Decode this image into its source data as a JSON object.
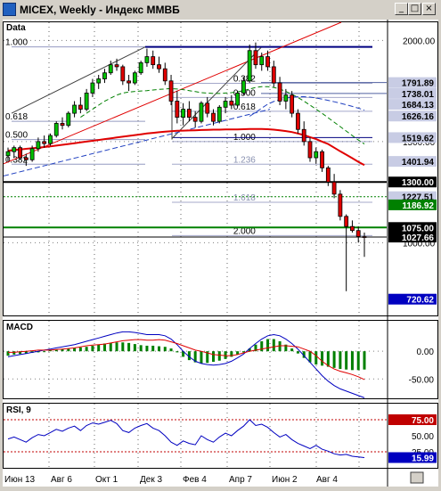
{
  "window": {
    "title": "MICEX, Weekly - Индекс ММВБ",
    "btn_min": "_",
    "btn_max": "□",
    "btn_close": "×"
  },
  "chart_data": {
    "type": "candlestick",
    "instrument": "MICEX",
    "timeframe": "Weekly",
    "panes": [
      {
        "id": "price",
        "label": "Data",
        "ylim": [
          640,
          2090
        ],
        "axis_labels": [
          {
            "value": 2000.0,
            "text": "2000.00"
          },
          {
            "value": 1500.0,
            "text": "1500.00"
          },
          {
            "value": 1000.0,
            "text": "1000.00"
          }
        ],
        "price_boxes": [
          {
            "value": 1791.89,
            "text": "1791.89"
          },
          {
            "value": 1738.01,
            "text": "1738.01"
          },
          {
            "value": 1684.13,
            "text": "1684.13"
          },
          {
            "value": 1626.16,
            "text": "1626.16"
          },
          {
            "value": 1519.62,
            "text": "1519.62"
          },
          {
            "value": 1401.94,
            "text": "1401.94"
          },
          {
            "value": 1300.0,
            "text": "1300.00",
            "style": "black"
          },
          {
            "value": 1227.51,
            "text": "1227.51"
          },
          {
            "value": 1186.92,
            "text": "1186.92",
            "style": "green"
          },
          {
            "value": 1075.0,
            "text": "1075.00",
            "style": "black"
          },
          {
            "value": 1027.66,
            "text": "1027.66",
            "style": "black"
          },
          {
            "value": 720.62,
            "text": "720.62",
            "style": "blue"
          }
        ],
        "fib_labels": [
          {
            "text": "1.000",
            "x": 0,
            "y": 1968
          },
          {
            "text": "0.618",
            "x": 0,
            "y": 1600
          },
          {
            "text": "0.500",
            "x": 0,
            "y": 1510
          },
          {
            "text": "0.382",
            "x": 0,
            "y": 1388
          },
          {
            "text": "0.382",
            "x": 37,
            "y": 1788
          },
          {
            "text": "0.500",
            "x": 37,
            "y": 1718
          },
          {
            "text": "0.618",
            "x": 37,
            "y": 1650
          },
          {
            "text": "1.000",
            "x": 37,
            "y": 1500
          },
          {
            "text": "1.236",
            "x": 37,
            "y": 1388
          },
          {
            "text": "1.618",
            "x": 37,
            "y": 1200
          },
          {
            "text": "2.000",
            "x": 37,
            "y": 1035
          }
        ],
        "candles": [
          {
            "o": 1430,
            "h": 1470,
            "l": 1400,
            "c": 1450
          },
          {
            "o": 1450,
            "h": 1480,
            "l": 1420,
            "c": 1470
          },
          {
            "o": 1470,
            "h": 1480,
            "l": 1410,
            "c": 1420
          },
          {
            "o": 1420,
            "h": 1440,
            "l": 1380,
            "c": 1410
          },
          {
            "o": 1410,
            "h": 1480,
            "l": 1400,
            "c": 1465
          },
          {
            "o": 1465,
            "h": 1520,
            "l": 1450,
            "c": 1500
          },
          {
            "o": 1500,
            "h": 1530,
            "l": 1470,
            "c": 1490
          },
          {
            "o": 1490,
            "h": 1540,
            "l": 1480,
            "c": 1530
          },
          {
            "o": 1530,
            "h": 1600,
            "l": 1520,
            "c": 1590
          },
          {
            "o": 1590,
            "h": 1620,
            "l": 1560,
            "c": 1580
          },
          {
            "o": 1580,
            "h": 1650,
            "l": 1570,
            "c": 1640
          },
          {
            "o": 1640,
            "h": 1700,
            "l": 1620,
            "c": 1680
          },
          {
            "o": 1680,
            "h": 1720,
            "l": 1640,
            "c": 1660
          },
          {
            "o": 1660,
            "h": 1760,
            "l": 1650,
            "c": 1740
          },
          {
            "o": 1740,
            "h": 1810,
            "l": 1720,
            "c": 1790
          },
          {
            "o": 1790,
            "h": 1830,
            "l": 1760,
            "c": 1810
          },
          {
            "o": 1810,
            "h": 1860,
            "l": 1790,
            "c": 1840
          },
          {
            "o": 1840,
            "h": 1900,
            "l": 1830,
            "c": 1880
          },
          {
            "o": 1880,
            "h": 1910,
            "l": 1850,
            "c": 1870
          },
          {
            "o": 1870,
            "h": 1880,
            "l": 1780,
            "c": 1800
          },
          {
            "o": 1800,
            "h": 1830,
            "l": 1750,
            "c": 1790
          },
          {
            "o": 1790,
            "h": 1850,
            "l": 1780,
            "c": 1840
          },
          {
            "o": 1840,
            "h": 1900,
            "l": 1830,
            "c": 1890
          },
          {
            "o": 1890,
            "h": 1960,
            "l": 1870,
            "c": 1920
          },
          {
            "o": 1920,
            "h": 1950,
            "l": 1860,
            "c": 1880
          },
          {
            "o": 1880,
            "h": 1920,
            "l": 1840,
            "c": 1860
          },
          {
            "o": 1860,
            "h": 1890,
            "l": 1780,
            "c": 1800
          },
          {
            "o": 1800,
            "h": 1830,
            "l": 1680,
            "c": 1700
          },
          {
            "o": 1700,
            "h": 1750,
            "l": 1590,
            "c": 1620
          },
          {
            "o": 1620,
            "h": 1690,
            "l": 1580,
            "c": 1660
          },
          {
            "o": 1660,
            "h": 1700,
            "l": 1600,
            "c": 1620
          },
          {
            "o": 1620,
            "h": 1650,
            "l": 1570,
            "c": 1600
          },
          {
            "o": 1600,
            "h": 1700,
            "l": 1590,
            "c": 1690
          },
          {
            "o": 1690,
            "h": 1720,
            "l": 1620,
            "c": 1640
          },
          {
            "o": 1640,
            "h": 1660,
            "l": 1580,
            "c": 1600
          },
          {
            "o": 1600,
            "h": 1680,
            "l": 1590,
            "c": 1670
          },
          {
            "o": 1670,
            "h": 1720,
            "l": 1640,
            "c": 1700
          },
          {
            "o": 1700,
            "h": 1730,
            "l": 1660,
            "c": 1680
          },
          {
            "o": 1680,
            "h": 1750,
            "l": 1670,
            "c": 1740
          },
          {
            "o": 1740,
            "h": 1820,
            "l": 1730,
            "c": 1800
          },
          {
            "o": 1800,
            "h": 1980,
            "l": 1790,
            "c": 1950
          },
          {
            "o": 1950,
            "h": 1990,
            "l": 1860,
            "c": 1880
          },
          {
            "o": 1880,
            "h": 1940,
            "l": 1850,
            "c": 1920
          },
          {
            "o": 1920,
            "h": 1950,
            "l": 1850,
            "c": 1870
          },
          {
            "o": 1870,
            "h": 1900,
            "l": 1770,
            "c": 1790
          },
          {
            "o": 1790,
            "h": 1820,
            "l": 1680,
            "c": 1700
          },
          {
            "o": 1700,
            "h": 1760,
            "l": 1660,
            "c": 1730
          },
          {
            "o": 1730,
            "h": 1750,
            "l": 1620,
            "c": 1640
          },
          {
            "o": 1640,
            "h": 1660,
            "l": 1540,
            "c": 1560
          },
          {
            "o": 1560,
            "h": 1600,
            "l": 1480,
            "c": 1500
          },
          {
            "o": 1500,
            "h": 1520,
            "l": 1400,
            "c": 1420
          },
          {
            "o": 1420,
            "h": 1470,
            "l": 1390,
            "c": 1450
          },
          {
            "o": 1450,
            "h": 1460,
            "l": 1350,
            "c": 1370
          },
          {
            "o": 1370,
            "h": 1380,
            "l": 1280,
            "c": 1300
          },
          {
            "o": 1300,
            "h": 1340,
            "l": 1220,
            "c": 1240
          },
          {
            "o": 1240,
            "h": 1260,
            "l": 1110,
            "c": 1130
          },
          {
            "o": 1130,
            "h": 1140,
            "l": 760,
            "c": 1080
          },
          {
            "o": 1080,
            "h": 1110,
            "l": 1050,
            "c": 1060
          },
          {
            "o": 1060,
            "h": 1080,
            "l": 1000,
            "c": 1030
          },
          {
            "o": 1030,
            "h": 1050,
            "l": 930,
            "c": 1027.66
          }
        ],
        "ma_red": [
          1455,
          1458,
          1461,
          1464,
          1467,
          1470,
          1473,
          1476,
          1480,
          1484,
          1488,
          1492,
          1496,
          1500,
          1504,
          1508,
          1512,
          1516,
          1520,
          1524,
          1528,
          1532,
          1536,
          1540,
          1543,
          1546,
          1549,
          1551,
          1553,
          1554,
          1555,
          1556,
          1557,
          1558,
          1559,
          1559,
          1560,
          1560,
          1560,
          1561,
          1562,
          1562,
          1562,
          1561,
          1559,
          1556,
          1552,
          1547,
          1540,
          1532,
          1522,
          1512,
          1500,
          1488,
          1470,
          1452,
          1435,
          1418,
          1400,
          1384
        ],
        "ma_green": [
          null,
          null,
          null,
          null,
          null,
          null,
          null,
          null,
          null,
          null,
          null,
          null,
          1620,
          1640,
          1660,
          1680,
          1700,
          1715,
          1730,
          1740,
          1745,
          1748,
          1750,
          1752,
          1755,
          1758,
          1760,
          1762,
          1760,
          1757,
          1752,
          1747,
          1742,
          1740,
          1738,
          1738,
          1740,
          1742,
          1746,
          1752,
          1760,
          1768,
          1772,
          1772,
          1768,
          1760,
          1748,
          1734,
          1718,
          1700,
          1680,
          1660,
          1640,
          1618,
          1596,
          1574,
          1552,
          1530,
          1508,
          1488
        ],
        "ma_blue": [
          null,
          null,
          null,
          null,
          null,
          null,
          null,
          null,
          null,
          null,
          null,
          null,
          null,
          null,
          null,
          null,
          null,
          null,
          null,
          null,
          null,
          null,
          null,
          null,
          null,
          null,
          null,
          null,
          null,
          null,
          null,
          null,
          null,
          null,
          null,
          null,
          null,
          null,
          null,
          null,
          1625,
          1645,
          1665,
          1685,
          1698,
          1708,
          1715,
          1720,
          1722,
          1722,
          1720,
          1716,
          1710,
          1704,
          1697,
          1690,
          1682,
          1674,
          1665,
          1656
        ]
      },
      {
        "id": "macd",
        "label": "MACD",
        "ylim": [
          -85,
          55
        ],
        "axis_labels": [
          {
            "value": 0,
            "text": "0.00"
          },
          {
            "value": -50,
            "text": "-50.00"
          }
        ],
        "histogram": [
          -8,
          -6,
          -5,
          -4,
          -3,
          -2,
          0,
          2,
          3,
          4,
          5,
          6,
          7,
          8,
          10,
          12,
          14,
          15,
          16,
          16,
          15,
          13,
          11,
          10,
          10,
          9,
          8,
          5,
          -2,
          -10,
          -16,
          -20,
          -22,
          -21,
          -19,
          -17,
          -14,
          -10,
          -6,
          -2,
          5,
          12,
          18,
          22,
          22,
          18,
          12,
          5,
          -4,
          -12,
          -20,
          -24,
          -26,
          -28,
          -30,
          -32,
          -33,
          -34,
          -34,
          -33
        ],
        "macd_line": [
          -10,
          -8,
          -6,
          -4,
          -2,
          0,
          2,
          4,
          6,
          8,
          10,
          12,
          15,
          18,
          21,
          24,
          27,
          30,
          33,
          35,
          35,
          34,
          32,
          30,
          30,
          30,
          28,
          22,
          12,
          0,
          -10,
          -18,
          -22,
          -24,
          -25,
          -24,
          -22,
          -18,
          -12,
          -5,
          5,
          14,
          22,
          28,
          30,
          28,
          22,
          14,
          4,
          -8,
          -20,
          -32,
          -44,
          -54,
          -62,
          -68,
          -72,
          -76,
          -80,
          -84
        ],
        "signal_line": [
          -2,
          -2,
          -1,
          0,
          1,
          2,
          2,
          2,
          3,
          4,
          5,
          6,
          8,
          10,
          11,
          12,
          13,
          15,
          17,
          19,
          20,
          21,
          21,
          20,
          20,
          21,
          20,
          17,
          14,
          10,
          6,
          2,
          0,
          -3,
          -6,
          -7,
          -8,
          -8,
          -6,
          -3,
          0,
          2,
          4,
          6,
          8,
          10,
          10,
          9,
          8,
          4,
          0,
          -8,
          -18,
          -26,
          -32,
          -36,
          -39,
          -42,
          -46,
          -51
        ]
      },
      {
        "id": "rsi",
        "label": "RSI, 9",
        "ylim": [
          0,
          100
        ],
        "levels": [
          75,
          25
        ],
        "axis_labels": [
          {
            "value": 75,
            "text": "75.00",
            "style": "red"
          },
          {
            "value": 50,
            "text": "50.00"
          },
          {
            "value": 25,
            "text": "25.00"
          },
          {
            "value": 15.99,
            "text": "15.99",
            "style": "blue"
          }
        ],
        "values": [
          45,
          48,
          44,
          40,
          47,
          52,
          50,
          55,
          60,
          57,
          62,
          65,
          58,
          66,
          70,
          68,
          71,
          74,
          69,
          58,
          55,
          62,
          66,
          69,
          62,
          58,
          50,
          40,
          35,
          42,
          38,
          36,
          50,
          44,
          40,
          48,
          54,
          50,
          58,
          65,
          75,
          66,
          68,
          63,
          55,
          48,
          52,
          44,
          38,
          34,
          30,
          35,
          29,
          26,
          22,
          20,
          21,
          18,
          17,
          15.99
        ]
      }
    ],
    "x_labels": [
      "Июн 13",
      "Авг 6",
      "Окт 1",
      "Дек 3",
      "Фев 4",
      "Апр 7",
      "Июн 2",
      "Авг 4"
    ]
  }
}
